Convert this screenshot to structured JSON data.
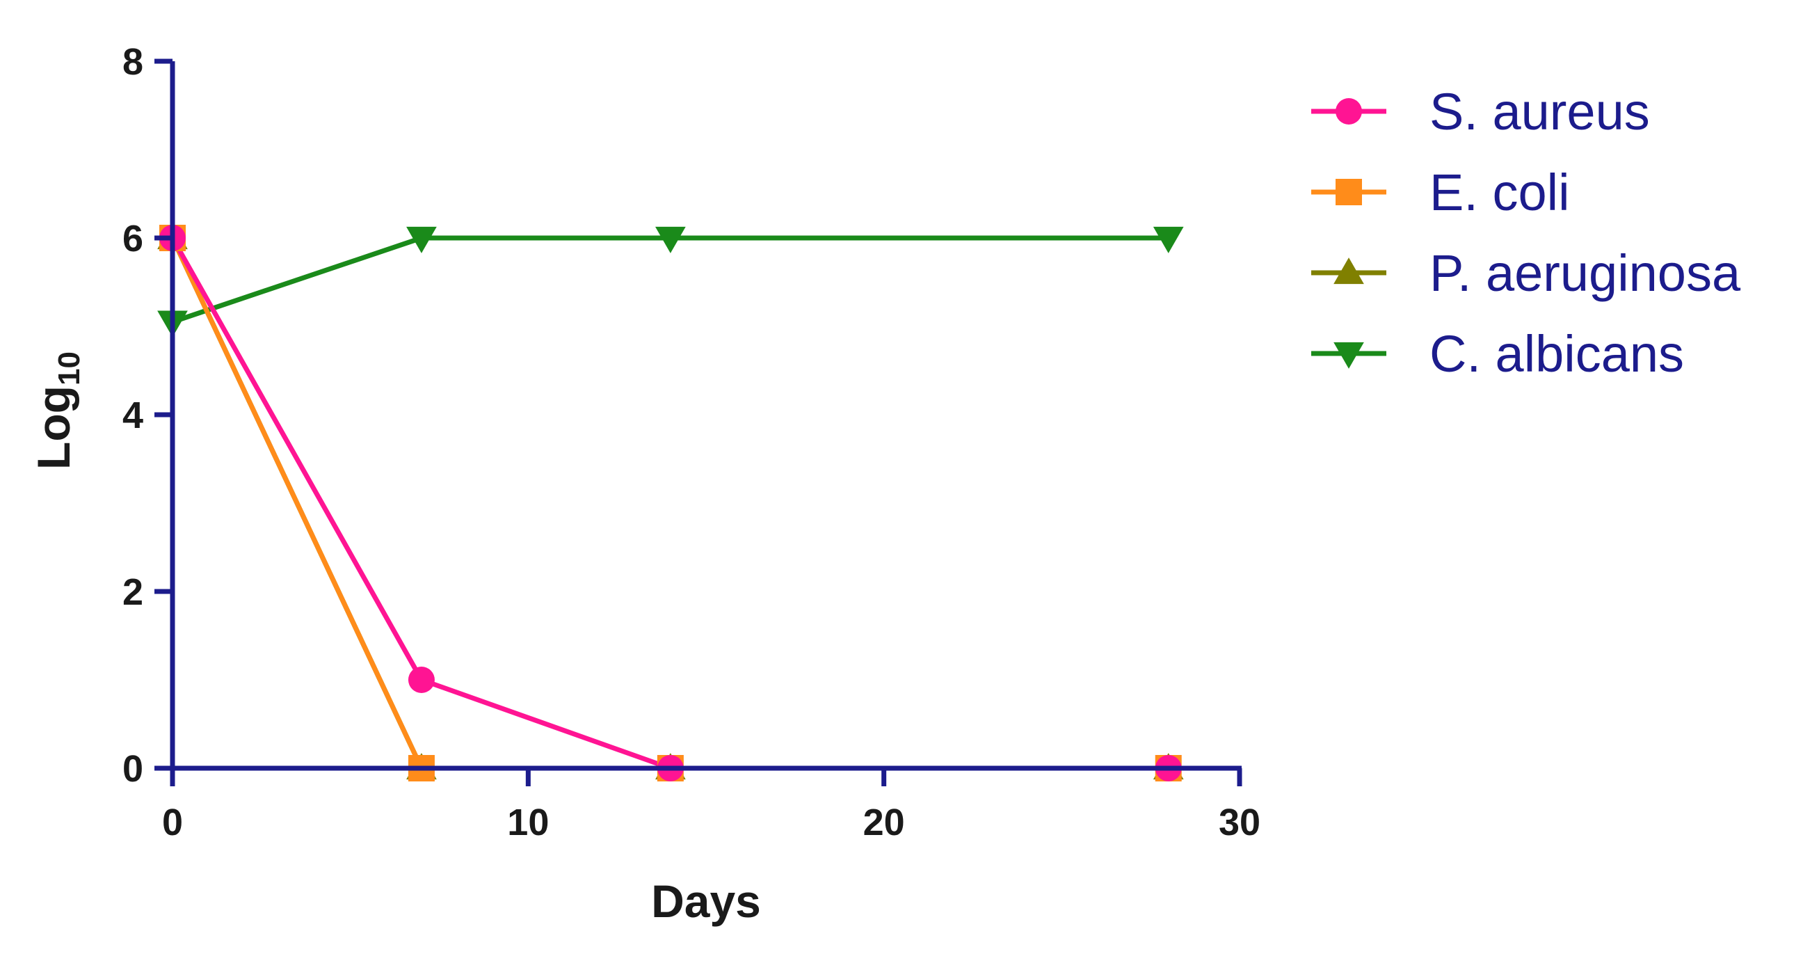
{
  "chart_data": {
    "type": "line",
    "title": "",
    "xlabel": "Days",
    "ylabel": {
      "base": "Log",
      "subscript": "10"
    },
    "xlim": [
      0,
      30
    ],
    "ylim": [
      0,
      8
    ],
    "xticks": [
      "0",
      "10",
      "20",
      "30"
    ],
    "yticks": [
      "0",
      "2",
      "4",
      "6",
      "8"
    ],
    "grid": false,
    "legend_position": "top-right",
    "axis_color": "#1c1c8c",
    "series": [
      {
        "name": "S. aureus",
        "color": "#ff1493",
        "marker": "circle",
        "x": [
          0,
          7,
          14,
          28
        ],
        "y": [
          6,
          1,
          0,
          0
        ]
      },
      {
        "name": "E. coli",
        "color": "#ff8c1a",
        "marker": "square",
        "x": [
          0,
          7,
          14,
          28
        ],
        "y": [
          6,
          0,
          0,
          0
        ]
      },
      {
        "name": "P. aeruginosa",
        "color": "#808000",
        "marker": "triangle-up",
        "x": [
          0,
          7,
          14,
          28
        ],
        "y": [
          6,
          0,
          0,
          0
        ]
      },
      {
        "name": "C. albicans",
        "color": "#1a8a1a",
        "marker": "triangle-down",
        "x": [
          0,
          7,
          14,
          28
        ],
        "y": [
          5.05,
          6,
          6,
          6
        ]
      }
    ]
  }
}
